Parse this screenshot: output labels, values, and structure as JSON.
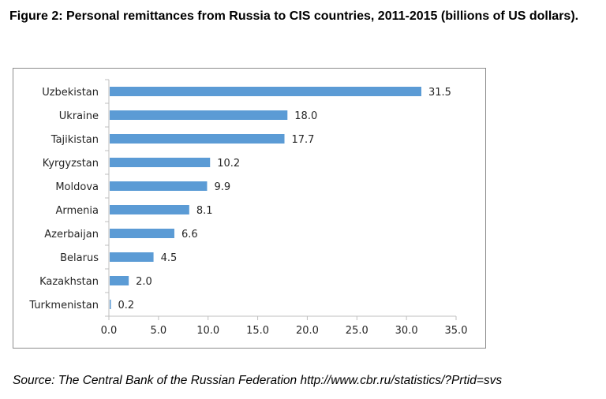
{
  "figure": {
    "title": "Figure 2: Personal remittances from Russia to CIS countries, 2011-2015 (billions of US dollars).",
    "source": "Source: The Central Bank of the Russian Federation http://www.cbr.ru/statistics/?Prtid=svs"
  },
  "chart_data": {
    "type": "bar",
    "orientation": "horizontal",
    "title": "",
    "xlabel": "",
    "ylabel": "",
    "categories": [
      "Uzbekistan",
      "Ukraine",
      "Tajikistan",
      "Kyrgyzstan",
      "Moldova",
      "Armenia",
      "Azerbaijan",
      "Belarus",
      "Kazakhstan",
      "Turkmenistan"
    ],
    "values": [
      31.5,
      18.0,
      17.7,
      10.2,
      9.9,
      8.1,
      6.6,
      4.5,
      2.0,
      0.2
    ],
    "data_labels": [
      "31.5",
      "18.0",
      "17.7",
      "10.2",
      "9.9",
      "8.1",
      "6.6",
      "4.5",
      "2.0",
      "0.2"
    ],
    "xlim": [
      0,
      35
    ],
    "xticks": [
      0,
      5,
      10,
      15,
      20,
      25,
      30,
      35
    ],
    "xtick_labels": [
      "0.0",
      "5.0",
      "10.0",
      "15.0",
      "20.0",
      "25.0",
      "30.0",
      "35.0"
    ],
    "grid": false,
    "legend": "none",
    "bar_color": "#5b9bd5"
  }
}
